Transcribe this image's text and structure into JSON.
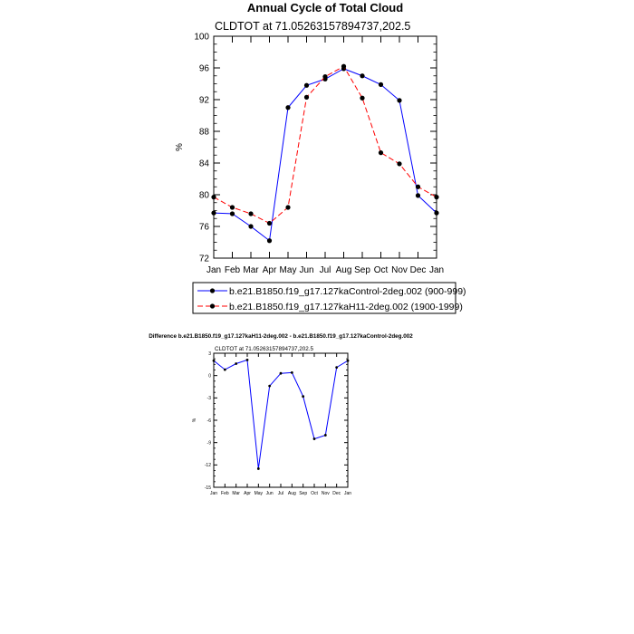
{
  "figure": {
    "main_title": "Annual Cycle of Total Cloud",
    "diff_title": "Difference b.e21.B1850.f19_g17.127kaH11-2deg.002 - b.e21.B1850.f19_g17.127kaControl-2deg.002"
  },
  "chart_data": [
    {
      "type": "line",
      "title": "CLDTOT at 71.05263157894737,202.5",
      "xlabel": "",
      "ylabel": "%",
      "categories": [
        "Jan",
        "Feb",
        "Mar",
        "Apr",
        "May",
        "Jun",
        "Jul",
        "Aug",
        "Sep",
        "Oct",
        "Nov",
        "Dec",
        "Jan"
      ],
      "ylim": [
        72,
        100
      ],
      "yticks": [
        72,
        76,
        80,
        84,
        88,
        92,
        96,
        100
      ],
      "ytick_labels": [
        "72",
        "76",
        "80",
        "84",
        "88",
        "92",
        "96",
        "100"
      ],
      "series": [
        {
          "name": "b.e21.B1850.f19_g17.127kaControl-2deg.002 (900-999)",
          "color": "#0000ff",
          "dash": "solid",
          "values": [
            77.7,
            77.6,
            76.0,
            74.2,
            91.0,
            93.8,
            94.6,
            95.9,
            95.0,
            93.9,
            91.9,
            79.9,
            77.7
          ]
        },
        {
          "name": "b.e21.B1850.f19_g17.127kaH11-2deg.002 (1900-1999)",
          "color": "#ff0000",
          "dash": "dashed",
          "values": [
            79.7,
            78.4,
            77.6,
            76.4,
            78.4,
            92.3,
            94.9,
            96.2,
            92.2,
            85.3,
            83.9,
            81.0,
            79.7
          ]
        }
      ],
      "legend_position": "below"
    },
    {
      "type": "line",
      "title": "CLDTOT at 71.05263157894737,202.5",
      "xlabel": "",
      "ylabel": "%",
      "categories": [
        "Jan",
        "Feb",
        "Mar",
        "Apr",
        "May",
        "Jun",
        "Jul",
        "Aug",
        "Sep",
        "Oct",
        "Nov",
        "Dec",
        "Jan"
      ],
      "ylim": [
        -15,
        3
      ],
      "yticks": [
        -15,
        -12,
        -9,
        -6,
        -3,
        0,
        3
      ],
      "ytick_labels": [
        "-15",
        "-12",
        "-9",
        "-6",
        "-3",
        "0",
        "3"
      ],
      "series": [
        {
          "name": "Difference",
          "color": "#0000ff",
          "dash": "solid",
          "values": [
            2.0,
            0.8,
            1.6,
            2.1,
            -12.5,
            -1.4,
            0.3,
            0.4,
            -2.8,
            -8.5,
            -8.0,
            1.1,
            2.0
          ]
        }
      ]
    }
  ]
}
